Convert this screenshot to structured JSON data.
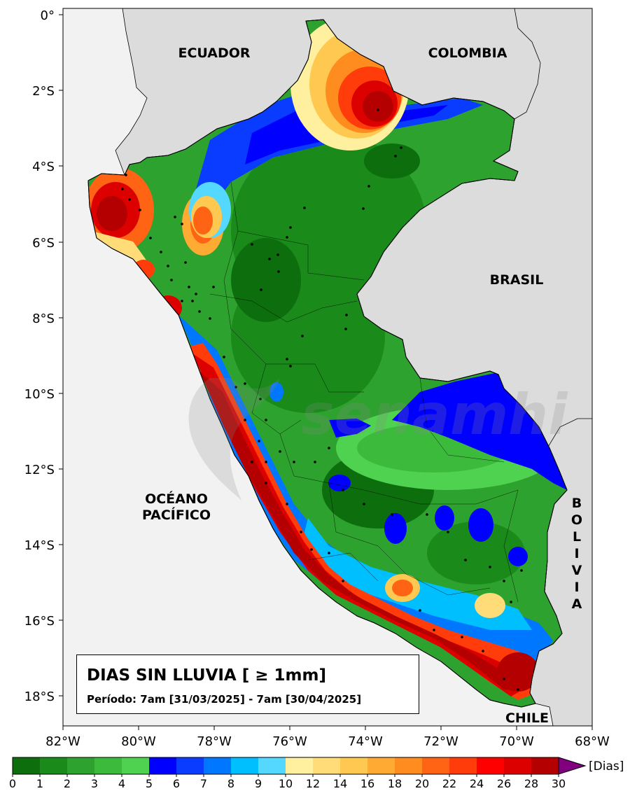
{
  "map": {
    "countries": [
      "ECUADOR",
      "COLOMBIA",
      "BRASIL",
      "CHILE"
    ],
    "ocean_line1": "OCÉANO",
    "ocean_line2": "PACÍFICO",
    "bolivia_letters": [
      "B",
      "O",
      "L",
      "I",
      "V",
      "I",
      "A"
    ],
    "lat_ticks": [
      "0°",
      "2°S",
      "4°S",
      "6°S",
      "8°S",
      "10°S",
      "12°S",
      "14°S",
      "16°S",
      "18°S"
    ],
    "lon_ticks": [
      "82°W",
      "80°W",
      "78°W",
      "76°W",
      "74°W",
      "72°W",
      "70°W",
      "68°W"
    ],
    "watermark_text": "senamhi",
    "colors": {
      "land_background": "#dcdcdc",
      "ocean": "#f2f2f2"
    }
  },
  "legend": {
    "title": "DIAS SIN LLUVIA [ ≥ 1mm]",
    "period": "Período: 7am [31/03/2025] - 7am [30/04/2025]"
  },
  "colorbar": {
    "unit_label": "[Dias]",
    "tick_labels": [
      "0",
      "1",
      "2",
      "3",
      "4",
      "5",
      "6",
      "7",
      "8",
      "9",
      "10",
      "12",
      "14",
      "16",
      "18",
      "20",
      "22",
      "24",
      "26",
      "28",
      "30"
    ],
    "colors": [
      "#0d6e0d",
      "#1a8a1a",
      "#2ea22e",
      "#3cba3c",
      "#4fd24f",
      "#0000ff",
      "#0a3cff",
      "#0077ff",
      "#00bfff",
      "#55d8ff",
      "#fff0a0",
      "#ffdc78",
      "#ffc850",
      "#ffaa32",
      "#ff8c1e",
      "#ff6414",
      "#ff3c0a",
      "#ff0000",
      "#dc0000",
      "#b40000"
    ],
    "extend_color": "#800080"
  }
}
